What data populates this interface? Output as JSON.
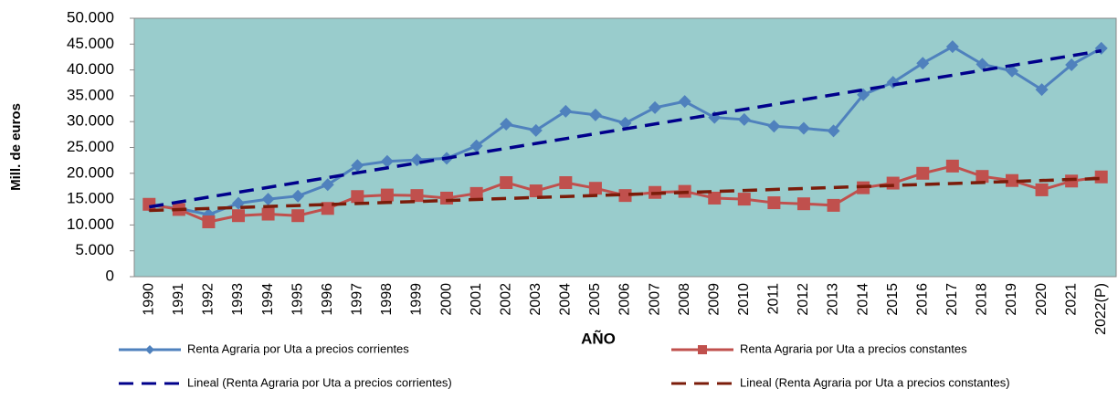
{
  "chart_data": {
    "type": "line",
    "y_label": "Mill. de euros",
    "x_label": "AÑO",
    "categories": [
      "1990",
      "1991",
      "1992",
      "1993",
      "1994",
      "1995",
      "1996",
      "1997",
      "1998",
      "1999",
      "2000",
      "2001",
      "2002",
      "2003",
      "2004",
      "2005",
      "2006",
      "2007",
      "2008",
      "2009",
      "2010",
      "2011",
      "2012",
      "2013",
      "2014",
      "2015",
      "2016",
      "2017",
      "2018",
      "2019",
      "2020",
      "2021",
      "2022(P)"
    ],
    "series": [
      {
        "name": "Renta Agraria por Uta a precios corrientes",
        "color": "#4f81bd",
        "marker": "diamond",
        "dashed": false,
        "values": [
          13800,
          13200,
          12000,
          14200,
          15000,
          15600,
          17800,
          21500,
          22300,
          22600,
          22900,
          25300,
          29500,
          28300,
          32000,
          31300,
          29700,
          32700,
          33900,
          30800,
          30400,
          29100,
          28700,
          28200,
          35200,
          37600,
          41300,
          44500,
          41100,
          39800,
          36200,
          41000,
          44200
        ]
      },
      {
        "name": "Renta Agraria por Uta a precios constantes",
        "color": "#c0504d",
        "marker": "square",
        "dashed": false,
        "values": [
          14000,
          13000,
          10600,
          11800,
          12100,
          11800,
          13200,
          15500,
          15800,
          15700,
          15200,
          16100,
          18200,
          16600,
          18200,
          17100,
          15700,
          16300,
          16500,
          15200,
          15000,
          14300,
          14100,
          13800,
          17200,
          18100,
          20000,
          21400,
          19400,
          18600,
          16800,
          18500,
          19300
        ]
      },
      {
        "name": "Lineal (Renta Agraria por Uta a precios corrientes)",
        "color": "#00008b",
        "marker": null,
        "dashed": true,
        "values": [
          13500,
          14444,
          15388,
          16331,
          17275,
          18219,
          19163,
          20106,
          21050,
          21994,
          22938,
          23881,
          24825,
          25769,
          26713,
          27656,
          28600,
          29544,
          30488,
          31431,
          32375,
          33319,
          34263,
          35206,
          36150,
          37094,
          38038,
          38981,
          39925,
          40869,
          41813,
          42756,
          43700
        ]
      },
      {
        "name": "Lineal (Renta Agraria por Uta a precios constantes)",
        "color": "#7b1c0a",
        "marker": null,
        "dashed": true,
        "values": [
          12800,
          12994,
          13188,
          13381,
          13575,
          13769,
          13963,
          14156,
          14350,
          14544,
          14738,
          14931,
          15125,
          15319,
          15513,
          15706,
          15900,
          16094,
          16288,
          16481,
          16675,
          16869,
          17063,
          17256,
          17450,
          17644,
          17838,
          18031,
          18225,
          18419,
          18613,
          18806,
          19000
        ]
      }
    ],
    "ylim": [
      0,
      50000
    ],
    "yticks": [
      0,
      {
        "value": 5000,
        "label": "5.000"
      },
      {
        "value": 10000,
        "label": "10.000"
      },
      {
        "value": 15000,
        "label": "15.000"
      },
      {
        "value": 20000,
        "label": "20.000"
      },
      {
        "value": 25000,
        "label": "25.000"
      },
      {
        "value": 30000,
        "label": "30.000"
      },
      {
        "value": 35000,
        "label": "35.000"
      },
      {
        "value": 40000,
        "label": "40.000"
      },
      {
        "value": 45000,
        "label": "45.000"
      },
      {
        "value": 50000,
        "label": "50.000"
      }
    ],
    "plot_background": "#99cccc",
    "legend": "bottom"
  }
}
